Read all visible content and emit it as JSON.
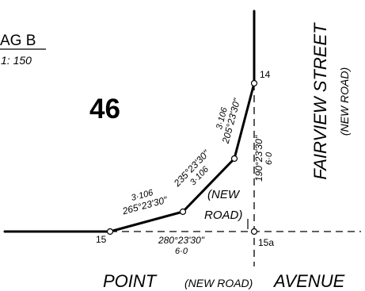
{
  "title_block": {
    "label": "AG B",
    "scale": "1: 150"
  },
  "lot_number": "46",
  "street_east": {
    "name": "FAIRVIEW STREET",
    "note": "(NEW ROAD)"
  },
  "street_south": {
    "name_part1": "POINT",
    "note": "(NEW ROAD)",
    "name_part2": "AVENUE"
  },
  "new_road_label": {
    "line1": "(NEW",
    "line2": "ROAD)"
  },
  "stations": {
    "s14": "14",
    "s15": "15",
    "s15a": "15a"
  },
  "bearings": {
    "bottom_dashed": {
      "bearing": "280°23'30\"",
      "distance": "6·0"
    },
    "right_dashed": {
      "bearing": "190°23'30\"",
      "distance": "6·0"
    },
    "leg1": {
      "distance": "3·106",
      "bearing": "265°23'30\""
    },
    "leg2": {
      "bearing": "235°23'30\"",
      "distance": "3·106"
    },
    "leg3": {
      "distance": "3·106",
      "bearing": "205°23'30\""
    }
  }
}
